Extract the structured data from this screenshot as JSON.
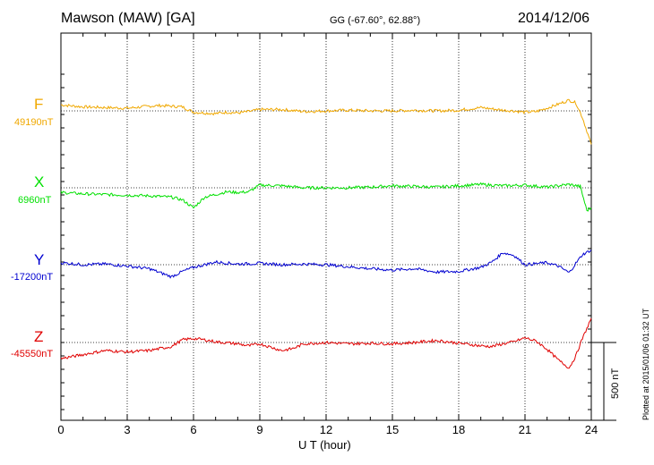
{
  "header": {
    "station": "Mawson (MAW)  [GA]",
    "coordinates": "GG (-67.60°,  62.88°)",
    "date": "2014/12/06"
  },
  "scale_label": "500 nT",
  "footer_note": "Plotted at 2015/01/06 01:32 UT",
  "colors": {
    "F": "#f0a800",
    "X": "#00e000",
    "Y": "#0000d0",
    "Z": "#e00000",
    "axes": "#000000"
  },
  "chart_data": {
    "type": "line",
    "xlabel": "U T (hour)",
    "xlim": [
      0,
      24
    ],
    "x_ticks": [
      "0",
      "3",
      "6",
      "9",
      "12",
      "15",
      "18",
      "21",
      "24"
    ],
    "grid": true,
    "series": [
      {
        "name": "F",
        "baseline_label": "49190nT",
        "x": [
          0,
          1,
          2,
          3,
          4,
          4.5,
          5,
          5.5,
          6,
          6.5,
          7,
          7.5,
          8,
          8.5,
          9,
          10,
          11,
          12,
          13,
          14,
          15,
          16,
          17,
          18,
          19,
          20,
          20.5,
          21,
          21.5,
          22,
          22.5,
          23,
          23.3,
          23.6,
          24
        ],
        "y": [
          45,
          30,
          25,
          20,
          35,
          40,
          35,
          30,
          -10,
          -15,
          -20,
          -10,
          -15,
          -5,
          10,
          10,
          -5,
          0,
          5,
          0,
          0,
          5,
          0,
          5,
          25,
          5,
          0,
          -10,
          -5,
          20,
          50,
          80,
          60,
          -50,
          -250
        ]
      },
      {
        "name": "X",
        "baseline_label": "6960nT",
        "x": [
          0,
          1,
          2,
          3,
          4,
          5,
          5.5,
          6,
          6.5,
          7,
          7.5,
          8,
          8.5,
          9,
          10,
          11,
          12,
          13,
          14,
          15,
          16,
          17,
          18,
          19,
          20,
          21,
          22,
          23,
          23.5,
          23.8,
          24
        ],
        "y": [
          -35,
          -45,
          -50,
          -55,
          -60,
          -70,
          -90,
          -150,
          -70,
          -50,
          -30,
          -35,
          -30,
          20,
          15,
          0,
          0,
          0,
          5,
          15,
          10,
          5,
          15,
          25,
          15,
          20,
          5,
          25,
          10,
          -170,
          -150
        ]
      },
      {
        "name": "Y",
        "baseline_label": "-17200nT",
        "x": [
          0,
          1,
          2,
          3,
          4,
          5,
          5.5,
          6,
          6.5,
          7,
          8,
          9,
          10,
          11,
          12,
          13,
          14,
          15,
          16,
          17,
          18,
          19,
          19.5,
          20,
          20.5,
          21,
          22,
          22.5,
          23,
          23.3,
          23.6,
          24
        ],
        "y": [
          15,
          0,
          5,
          -10,
          -30,
          -90,
          -50,
          -20,
          0,
          20,
          5,
          10,
          0,
          5,
          0,
          -15,
          -30,
          -40,
          -30,
          -55,
          -50,
          -20,
          20,
          90,
          70,
          0,
          15,
          -10,
          -60,
          10,
          75,
          110
        ]
      },
      {
        "name": "Z",
        "baseline_label": "-45550nT",
        "x": [
          0,
          1,
          2,
          3,
          4,
          5,
          5.5,
          6,
          6.5,
          7,
          8,
          8.5,
          9,
          10,
          10.5,
          11,
          12,
          13,
          14,
          15,
          16,
          17,
          18,
          19,
          19.5,
          20,
          20.5,
          21,
          21.5,
          22,
          22.5,
          23,
          23.3,
          23.6,
          24
        ],
        "y": [
          -120,
          -90,
          -60,
          -70,
          -60,
          -30,
          20,
          30,
          20,
          5,
          -10,
          -25,
          -10,
          -60,
          -45,
          -10,
          0,
          -10,
          -5,
          -10,
          0,
          15,
          -5,
          -25,
          -30,
          -10,
          5,
          35,
          10,
          -50,
          -130,
          -190,
          -100,
          30,
          180
        ]
      }
    ]
  }
}
